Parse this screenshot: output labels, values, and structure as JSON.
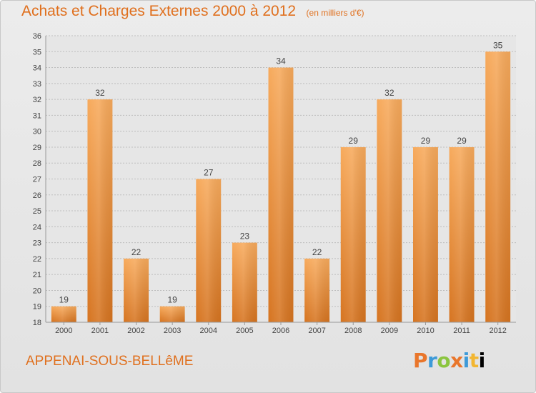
{
  "header": {
    "title": "Achats et Charges Externes 2000 à 2012",
    "subtitle": "(en milliers d'€)"
  },
  "footer": {
    "commune": "APPENAI-SOUS-BELLêME",
    "logo": "Proxiti"
  },
  "colors": {
    "accent": "#e0701e",
    "bar_light": "#f6a75a",
    "bar_dark": "#d6741f",
    "background": "#e6e6e6"
  },
  "chart_data": {
    "type": "bar",
    "categories": [
      "2000",
      "2001",
      "2002",
      "2003",
      "2004",
      "2005",
      "2006",
      "2007",
      "2008",
      "2009",
      "2010",
      "2011",
      "2012"
    ],
    "values": [
      19,
      32,
      22,
      19,
      27,
      23,
      34,
      22,
      29,
      32,
      29,
      29,
      35
    ],
    "ylim": [
      18,
      36
    ],
    "yticks": [
      18,
      19,
      20,
      21,
      22,
      23,
      24,
      25,
      26,
      27,
      28,
      29,
      30,
      31,
      32,
      33,
      34,
      35,
      36
    ],
    "grid": true,
    "data_labels": true
  }
}
